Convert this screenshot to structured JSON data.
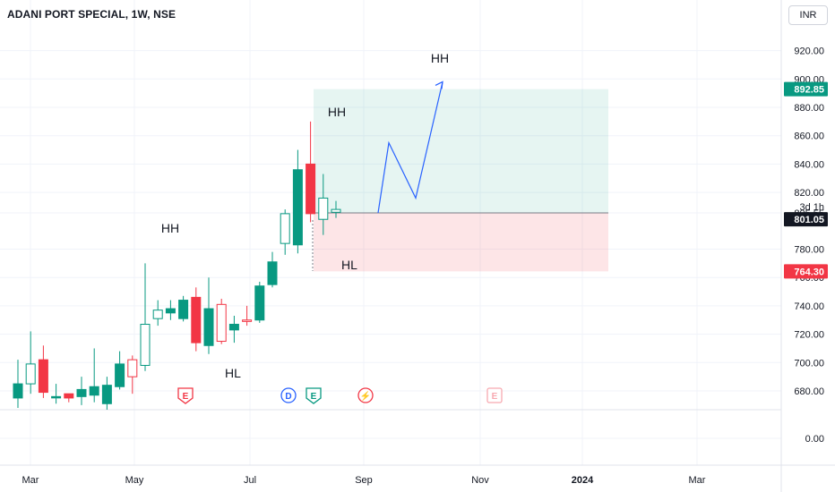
{
  "header": {
    "title": "ADANI PORT SPECIAL, 1W, NSE",
    "currency": "INR"
  },
  "chart_data": {
    "type": "candlestick",
    "y_axis_ticks": [
      920,
      900,
      880,
      860,
      840,
      820,
      805.55,
      780,
      760,
      740,
      720,
      700,
      680,
      0
    ],
    "y_axis_tick_labels": [
      "920.00",
      "900.00",
      "880.00",
      "860.00",
      "840.00",
      "820.00",
      "805.55",
      "780.00",
      "760.00",
      "740.00",
      "720.00",
      "700.00",
      "680.00",
      "0.00"
    ],
    "x_axis_labels": [
      "Mar",
      "May",
      "Jul",
      "Sep",
      "Nov",
      "2024",
      "Mar"
    ],
    "price_labels": [
      {
        "text": "892.85",
        "value": 892.85,
        "color": "#089981"
      },
      {
        "text": "801.05",
        "value": 801.05,
        "color": "#131722"
      },
      {
        "text": "764.30",
        "value": 764.3,
        "color": "#f23645"
      }
    ],
    "countdown": "3d 1h",
    "candles": [
      {
        "o": 675,
        "h": 702,
        "l": 668,
        "c": 685
      },
      {
        "o": 685,
        "h": 722,
        "l": 678,
        "c": 699
      },
      {
        "o": 702,
        "h": 712,
        "l": 675,
        "c": 679
      },
      {
        "o": 676,
        "h": 685,
        "l": 671,
        "c": 676
      },
      {
        "o": 678,
        "h": 678,
        "l": 672,
        "c": 675
      },
      {
        "o": 676,
        "h": 690,
        "l": 670,
        "c": 681
      },
      {
        "o": 677,
        "h": 710,
        "l": 672,
        "c": 683
      },
      {
        "o": 671,
        "h": 690,
        "l": 665,
        "c": 684
      },
      {
        "o": 683,
        "h": 708,
        "l": 681,
        "c": 699
      },
      {
        "o": 702,
        "h": 705,
        "l": 678,
        "c": 690
      },
      {
        "o": 698,
        "h": 770,
        "l": 694,
        "c": 727
      },
      {
        "o": 731,
        "h": 744,
        "l": 726,
        "c": 737
      },
      {
        "o": 735,
        "h": 744,
        "l": 730,
        "c": 738
      },
      {
        "o": 731,
        "h": 747,
        "l": 729,
        "c": 744
      },
      {
        "o": 746,
        "h": 753,
        "l": 708,
        "c": 714
      },
      {
        "o": 712,
        "h": 760,
        "l": 706,
        "c": 738
      },
      {
        "o": 741,
        "h": 745,
        "l": 713,
        "c": 715
      },
      {
        "o": 723,
        "h": 733,
        "l": 714,
        "c": 727
      },
      {
        "o": 730,
        "h": 740,
        "l": 726,
        "c": 729
      },
      {
        "o": 730,
        "h": 757,
        "l": 728,
        "c": 754
      },
      {
        "o": 755,
        "h": 778,
        "l": 753,
        "c": 771
      },
      {
        "o": 784,
        "h": 808,
        "l": 776,
        "c": 805
      },
      {
        "o": 783,
        "h": 850,
        "l": 777,
        "c": 836
      },
      {
        "o": 840,
        "h": 870,
        "l": 799,
        "c": 805
      },
      {
        "o": 801,
        "h": 833,
        "l": 790,
        "c": 816
      },
      {
        "o": 806,
        "h": 814,
        "l": 802,
        "c": 808
      }
    ],
    "position_tool": {
      "entry": 805.55,
      "target": 892.85,
      "stop": 764.3
    },
    "projection_path": [
      805.55,
      855,
      816,
      898
    ],
    "annotations": [
      "HH",
      "HL",
      "HH",
      "HL",
      "HH"
    ],
    "event_markers": [
      "E",
      "D",
      "E",
      "⚡",
      "E"
    ]
  }
}
